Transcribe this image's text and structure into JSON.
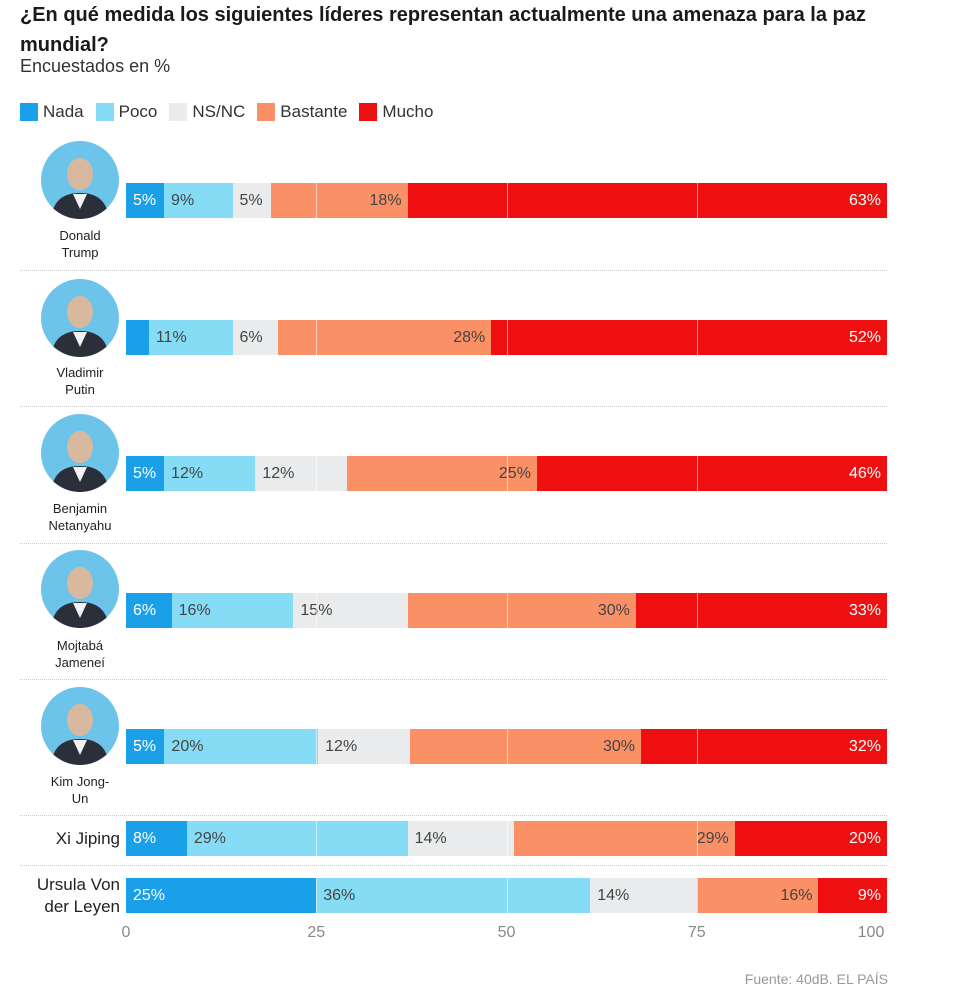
{
  "title": "¿En qué medida los siguientes líderes representan actualmente una amenaza para la paz mundial?",
  "subtitle": "Encuestados en %",
  "source": "Fuente: 40dB. EL PAÍS",
  "legend": [
    {
      "label": "Nada",
      "color": "#1aa0e8"
    },
    {
      "label": "Poco",
      "color": "#86dcf5"
    },
    {
      "label": "NS/NC",
      "color": "#e9ebec"
    },
    {
      "label": "Bastante",
      "color": "#fa9066"
    },
    {
      "label": "Mucho",
      "color": "#ee1010"
    }
  ],
  "chart_data": {
    "type": "bar",
    "orientation": "horizontal",
    "stacked": true,
    "title": "¿En qué medida los siguientes líderes representan actualmente una amenaza para la paz mundial?",
    "subtitle": "Encuestados en %",
    "xlim": [
      0,
      100
    ],
    "xticks": [
      "0",
      "25",
      "50",
      "75",
      "100"
    ],
    "series_names": [
      "Nada",
      "Poco",
      "NS/NC",
      "Bastante",
      "Mucho"
    ],
    "rows": [
      {
        "name": "Donald Trump",
        "name_lines": [
          "Donald",
          "Trump"
        ],
        "portrait": true,
        "values": [
          5,
          9,
          5,
          18,
          63
        ],
        "labels": [
          "5%",
          "9%",
          "5%",
          "18%",
          "63%"
        ]
      },
      {
        "name": "Vladimir Putin",
        "name_lines": [
          "Vladimir",
          "Putin"
        ],
        "portrait": true,
        "values": [
          3,
          11,
          6,
          28,
          52
        ],
        "labels": [
          "",
          "11%",
          "6%",
          "28%",
          "52%"
        ]
      },
      {
        "name": "Benjamin Netanyahu",
        "name_lines": [
          "Benjamin",
          "Netanyahu"
        ],
        "portrait": true,
        "values": [
          5,
          12,
          12,
          25,
          46
        ],
        "labels": [
          "5%",
          "12%",
          "12%",
          "25%",
          "46%"
        ]
      },
      {
        "name": "Mojtabá Jameneí",
        "name_lines": [
          "Mojtabá",
          "Jameneí"
        ],
        "portrait": true,
        "values": [
          6,
          16,
          15,
          30,
          33
        ],
        "labels": [
          "6%",
          "16%",
          "15%",
          "30%",
          "33%"
        ]
      },
      {
        "name": "Kim Jong-Un",
        "name_lines": [
          "Kim Jong-",
          "Un"
        ],
        "portrait": true,
        "values": [
          5,
          20,
          12,
          30,
          32
        ],
        "labels": [
          "5%",
          "20%",
          "12%",
          "30%",
          "32%"
        ]
      },
      {
        "name": "Xi Jiping",
        "name_lines": [
          "Xi Jiping"
        ],
        "portrait": false,
        "values": [
          8,
          29,
          14,
          29,
          20
        ],
        "labels": [
          "8%",
          "29%",
          "14%",
          "29%",
          "20%"
        ]
      },
      {
        "name": "Ursula Von der Leyen",
        "name_lines": [
          "Ursula Von",
          "der Leyen"
        ],
        "portrait": false,
        "values": [
          25,
          36,
          14,
          16,
          9
        ],
        "labels": [
          "25%",
          "36%",
          "14%",
          "16%",
          "9%"
        ]
      }
    ]
  }
}
